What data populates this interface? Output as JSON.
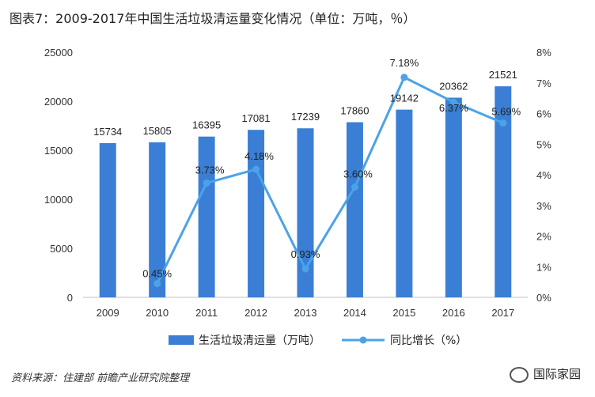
{
  "title": "图表7：2009-2017年中国生活垃圾清运量变化情况（单位：万吨，％）",
  "source": "资料来源：住建部  前瞻产业研究院整理",
  "brand": "国际家园",
  "chart_data": {
    "type": "bar+line",
    "categories": [
      "2009",
      "2010",
      "2011",
      "2012",
      "2013",
      "2014",
      "2015",
      "2016",
      "2017"
    ],
    "series": [
      {
        "name": "生活垃圾清运量（万吨）",
        "type": "bar",
        "axis": "left",
        "color": "#3a7fd5",
        "values": [
          15734,
          15805,
          16395,
          17081,
          17239,
          17860,
          19142,
          20362,
          21521
        ],
        "labels": [
          "15734",
          "15805",
          "16395",
          "17081",
          "17239",
          "17860",
          "19142",
          "20362",
          "21521"
        ]
      },
      {
        "name": "同比增长（%）",
        "type": "line",
        "axis": "right",
        "color": "#4aa3e8",
        "x": [
          "2010",
          "2011",
          "2012",
          "2013",
          "2014",
          "2015",
          "2016",
          "2017"
        ],
        "values": [
          0.45,
          3.73,
          4.18,
          0.93,
          3.6,
          7.18,
          6.37,
          5.69
        ],
        "labels": [
          "0.45%",
          "3.73%",
          "4.18%",
          "0.93%",
          "3.60%",
          "7.18%",
          "6.37%",
          "5.69%"
        ]
      }
    ],
    "y_left": {
      "min": 0,
      "max": 25000,
      "ticks": [
        "0",
        "5000",
        "10000",
        "15000",
        "20000",
        "25000"
      ]
    },
    "y_right": {
      "min": 0,
      "max": 8,
      "ticks": [
        "0%",
        "1%",
        "2%",
        "3%",
        "4%",
        "5%",
        "6%",
        "7%",
        "8%"
      ]
    },
    "grid": false,
    "legend_position": "bottom"
  }
}
